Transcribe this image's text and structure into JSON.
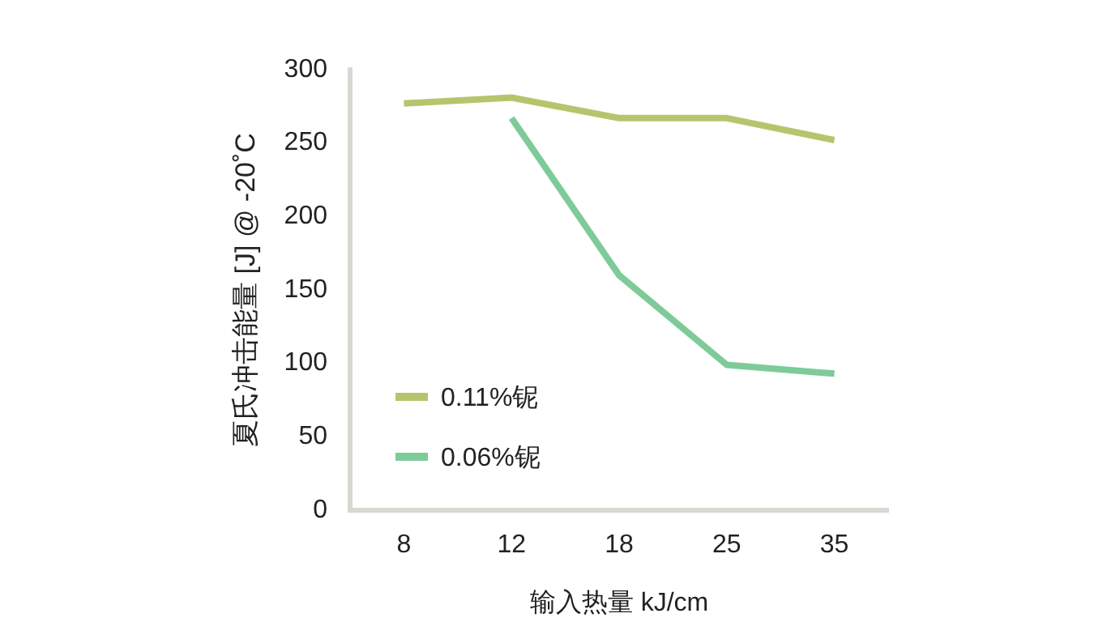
{
  "chart_data": {
    "type": "line",
    "xlabel": "输入热量 kJ/cm",
    "ylabel": "夏氏冲击能量 [J] @ -20˚C",
    "categories": [
      "8",
      "12",
      "18",
      "25",
      "35"
    ],
    "series": [
      {
        "name": "0.11%铌",
        "color": "#b8c46c",
        "values": [
          277,
          281,
          267,
          267,
          252
        ]
      },
      {
        "name": "0.06%铌",
        "color": "#7ecb99",
        "values": [
          null,
          267,
          160,
          99,
          93
        ]
      }
    ],
    "ylim": [
      0,
      300
    ],
    "yticks": [
      0,
      50,
      100,
      150,
      200,
      250,
      300
    ],
    "grid": false,
    "legend": "bottom left",
    "marker": "none",
    "line_style": "solid"
  }
}
